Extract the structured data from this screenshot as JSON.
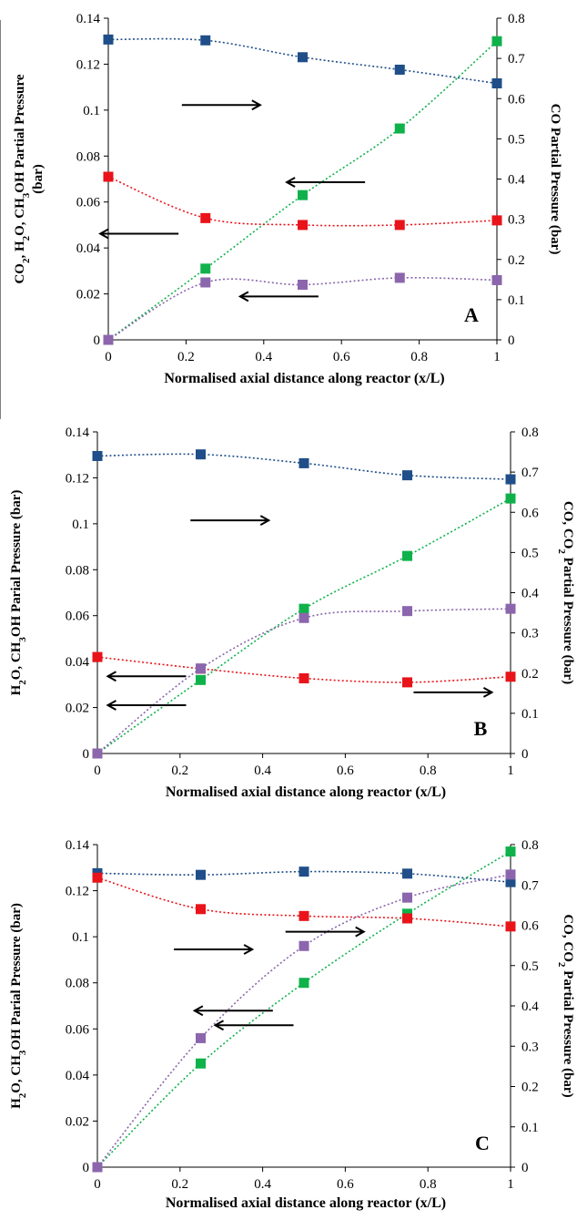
{
  "chart_data": [
    {
      "type": "line",
      "panel_label": "A",
      "xlabel": "Normalised axial distance along reactor (x/L)",
      "ylabel_left": "CO₂, H₂O, CH₃OH Partial Pressure (bar)",
      "ylabel_right": "CO Partial Pressure (bar)",
      "xlim": [
        0,
        1
      ],
      "ylim_left": [
        0,
        0.14
      ],
      "ylim_right": [
        0,
        0.8
      ],
      "x_ticks": [
        "0",
        "0.2",
        "0.4",
        "0.6",
        "0.8",
        "1"
      ],
      "y_left_ticks": [
        "0",
        "0.02",
        "0.04",
        "0.06",
        "0.08",
        "0.1",
        "0.12",
        "0.14"
      ],
      "y_right_ticks": [
        "0",
        "0.1",
        "0.2",
        "0.3",
        "0.4",
        "0.5",
        "0.6",
        "0.7",
        "0.8"
      ],
      "series": [
        {
          "color": "#1f4e89",
          "axis": "right",
          "x": [
            0,
            0.25,
            0.5,
            0.75,
            1
          ],
          "y": [
            0.747,
            0.745,
            0.703,
            0.672,
            0.638
          ]
        },
        {
          "color": "#0fb24a",
          "axis": "left",
          "x": [
            0,
            0.25,
            0.5,
            0.75,
            1
          ],
          "y": [
            0,
            0.031,
            0.063,
            0.092,
            0.13
          ]
        },
        {
          "color": "#e8141a",
          "axis": "left",
          "x": [
            0,
            0.25,
            0.5,
            0.75,
            1
          ],
          "y": [
            0.071,
            0.053,
            0.05,
            0.05,
            0.052
          ]
        },
        {
          "color": "#8b66ad",
          "axis": "left",
          "x": [
            0,
            0.25,
            0.5,
            0.75,
            1
          ],
          "y": [
            0,
            0.025,
            0.024,
            0.027,
            0.026
          ]
        }
      ],
      "arrows": [
        {
          "dir": "right",
          "x": 0.29,
          "y": 0.73
        },
        {
          "dir": "left",
          "x": 0.56,
          "y": 0.49
        },
        {
          "dir": "left",
          "x": 0.08,
          "y": 0.33
        },
        {
          "dir": "left",
          "x": 0.44,
          "y": 0.135
        }
      ]
    },
    {
      "type": "line",
      "panel_label": "B",
      "xlabel": "Normalised axial distance along reactor (x/L)",
      "ylabel_left": "H₂O, CH₃OH Parial Pressure (bar)",
      "ylabel_right": "CO, CO₂ Partial Pressure (bar)",
      "xlim": [
        0,
        1
      ],
      "ylim_left": [
        0,
        0.14
      ],
      "ylim_right": [
        0,
        0.8
      ],
      "x_ticks": [
        "0",
        "0.2",
        "0.4",
        "0.6",
        "0.8",
        "1"
      ],
      "y_left_ticks": [
        "0",
        "0.02",
        "0.04",
        "0.06",
        "0.08",
        "0.1",
        "0.12",
        "0.14"
      ],
      "y_right_ticks": [
        "0",
        "0.1",
        "0.2",
        "0.3",
        "0.4",
        "0.5",
        "0.6",
        "0.7",
        "0.8"
      ],
      "series": [
        {
          "color": "#1f4e89",
          "axis": "right",
          "x": [
            0,
            0.25,
            0.5,
            0.75,
            1
          ],
          "y": [
            0.74,
            0.744,
            0.722,
            0.692,
            0.682
          ]
        },
        {
          "color": "#0fb24a",
          "axis": "left",
          "x": [
            0,
            0.25,
            0.5,
            0.75,
            1
          ],
          "y": [
            0,
            0.032,
            0.063,
            0.086,
            0.111
          ]
        },
        {
          "color": "#e8141a",
          "axis": "right",
          "x": [
            0,
            0.25,
            0.5,
            0.75,
            1
          ],
          "y": [
            0.24,
            0.211,
            0.187,
            0.177,
            0.191
          ]
        },
        {
          "color": "#8b66ad",
          "axis": "left",
          "x": [
            0,
            0.25,
            0.5,
            0.75,
            1
          ],
          "y": [
            0,
            0.037,
            0.059,
            0.062,
            0.063
          ]
        }
      ],
      "arrows": [
        {
          "dir": "right",
          "x": 0.32,
          "y": 0.725
        },
        {
          "dir": "left",
          "x": 0.12,
          "y": 0.24
        },
        {
          "dir": "left",
          "x": 0.12,
          "y": 0.15
        },
        {
          "dir": "right",
          "x": 0.86,
          "y": 0.19
        }
      ]
    },
    {
      "type": "line",
      "panel_label": "C",
      "xlabel": "Normalised axial distance along reactor (x/L)",
      "ylabel_left": "H₂O, CH₃OH Parial Pressure (bar)",
      "ylabel_right": "CO, CO₂ Partial Pressure (bar)",
      "xlim": [
        0,
        1
      ],
      "ylim_left": [
        0,
        0.14
      ],
      "ylim_right": [
        0,
        0.8
      ],
      "x_ticks": [
        "0",
        "0.2",
        "0.4",
        "0.6",
        "0.8",
        "1"
      ],
      "y_left_ticks": [
        "0",
        "0.02",
        "0.04",
        "0.06",
        "0.08",
        "0.1",
        "0.12",
        "0.14"
      ],
      "y_right_ticks": [
        "0",
        "0.1",
        "0.2",
        "0.3",
        "0.4",
        "0.5",
        "0.6",
        "0.7",
        "0.8"
      ],
      "series": [
        {
          "color": "#1f4e89",
          "axis": "right",
          "x": [
            0,
            0.25,
            0.5,
            0.75,
            1
          ],
          "y": [
            0.729,
            0.725,
            0.733,
            0.728,
            0.707
          ]
        },
        {
          "color": "#0fb24a",
          "axis": "left",
          "x": [
            0,
            0.25,
            0.5,
            0.75,
            1
          ],
          "y": [
            0,
            0.045,
            0.08,
            0.11,
            0.137
          ]
        },
        {
          "color": "#e8141a",
          "axis": "right",
          "x": [
            0,
            0.25,
            0.5,
            0.75,
            1
          ],
          "y": [
            0.718,
            0.64,
            0.623,
            0.617,
            0.597
          ]
        },
        {
          "color": "#8b66ad",
          "axis": "left",
          "x": [
            0,
            0.25,
            0.5,
            0.75,
            1
          ],
          "y": [
            0,
            0.056,
            0.096,
            0.117,
            0.127
          ]
        }
      ],
      "arrows": [
        {
          "dir": "right",
          "x": 0.28,
          "y": 0.675
        },
        {
          "dir": "right",
          "x": 0.55,
          "y": 0.73
        },
        {
          "dir": "left",
          "x": 0.33,
          "y": 0.485
        },
        {
          "dir": "left",
          "x": 0.38,
          "y": 0.44
        }
      ]
    }
  ]
}
